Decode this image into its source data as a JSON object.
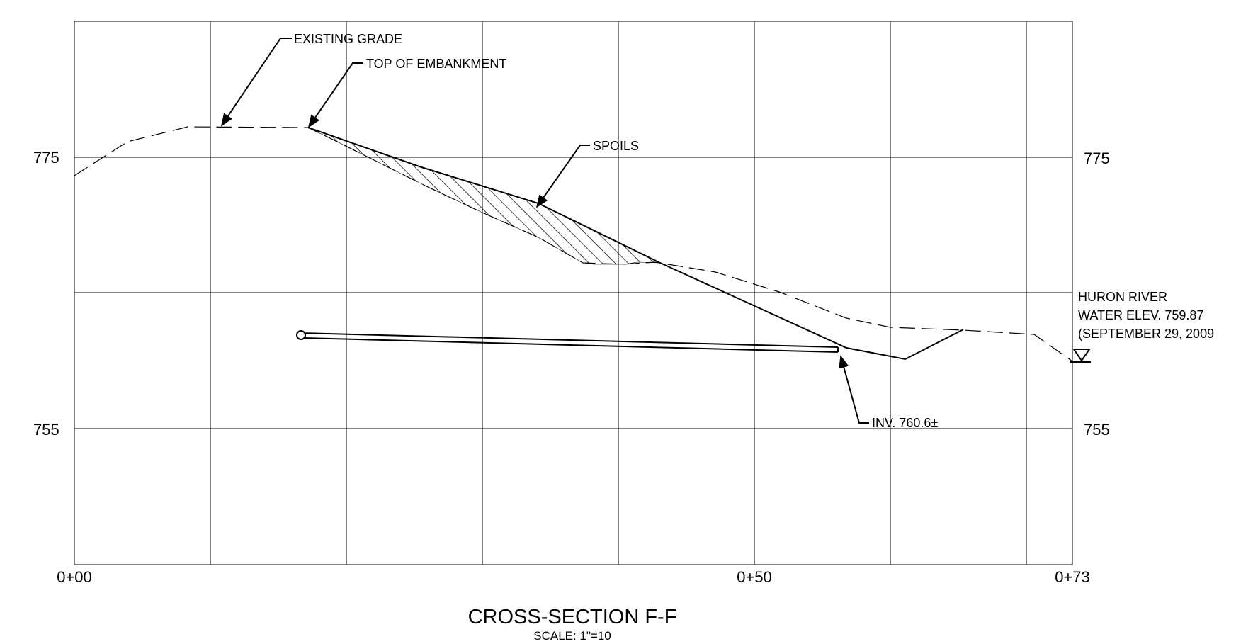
{
  "drawing": {
    "title": "CROSS-SECTION F-F",
    "scale_note": "SCALE: 1\"=10"
  },
  "axes": {
    "elevation_labels_left": [
      "775",
      "755"
    ],
    "elevation_labels_right": [
      "775",
      "755"
    ],
    "station_labels": [
      "0+00",
      "0+50",
      "0+73"
    ]
  },
  "callouts": {
    "existing_grade": "EXISTING GRADE",
    "top_of_embankment": "TOP OF EMBANKMENT",
    "spoils": "SPOILS",
    "invert": "INV. 760.6±",
    "river_name": "HURON RIVER",
    "water_elev": "WATER ELEV. 759.87",
    "water_date": "(SEPTEMBER 29, 2009"
  },
  "chart_data": {
    "type": "line",
    "title": "CROSS-SECTION F-F",
    "xlabel": "",
    "ylabel": "",
    "x_range": [
      0,
      73
    ],
    "y_range": [
      745,
      785
    ],
    "grid": true,
    "x_ticks": [
      "0+00",
      "0+50",
      "0+73"
    ],
    "y_ticks": [
      775,
      755
    ],
    "series": [
      {
        "name": "EXISTING GRADE",
        "style": "dashed",
        "points": [
          [
            0,
            772.3
          ],
          [
            4,
            776.1
          ],
          [
            8,
            777.2
          ],
          [
            17,
            777.2
          ],
          [
            28,
            771.8
          ],
          [
            37.5,
            768.2
          ],
          [
            41,
            768.1
          ],
          [
            44,
            768.3
          ],
          [
            48,
            767.6
          ],
          [
            53,
            765.6
          ],
          [
            57,
            764.5
          ],
          [
            60,
            764.4
          ],
          [
            65,
            764.2
          ],
          [
            71,
            763.8
          ],
          [
            73,
            761.6
          ]
        ]
      },
      {
        "name": "TOP OF EMBANKMENT",
        "style": "solid",
        "points": [
          [
            17,
            777.2
          ],
          [
            34,
            771.2
          ],
          [
            43,
            767.9
          ],
          [
            57,
            761.3
          ],
          [
            61,
            761.3
          ],
          [
            65.5,
            764.2
          ]
        ]
      },
      {
        "name": "SPOILS",
        "style": "hatched",
        "points": [
          [
            17,
            777.2
          ],
          [
            34,
            771.2
          ],
          [
            43,
            767.9
          ],
          [
            41,
            768.1
          ],
          [
            37.5,
            768.2
          ],
          [
            28,
            771.8
          ]
        ]
      },
      {
        "name": "PIPE",
        "style": "double-line",
        "points": [
          [
            16.7,
            763.5
          ],
          [
            56,
            761.9
          ]
        ]
      }
    ],
    "annotations": [
      {
        "text": "INV. 760.6±"
      },
      {
        "text": "HURON RIVER WATER ELEV. 759.87 (SEPTEMBER 29, 2009"
      }
    ]
  }
}
